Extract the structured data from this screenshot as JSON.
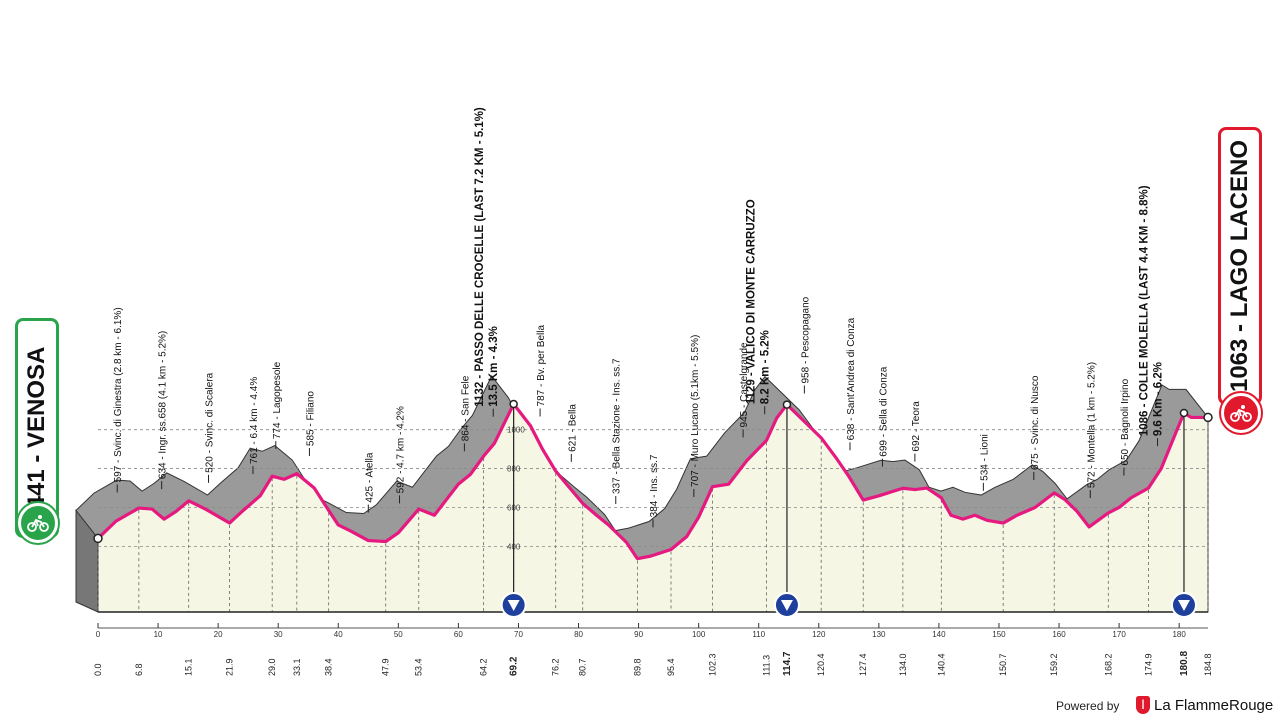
{
  "start": {
    "elevation_label": "441 - VENOSA",
    "icon": "cyclist-icon",
    "color": "#2aa44a"
  },
  "finish": {
    "elevation_label": "1063 - LAGO LACENO",
    "icon": "cyclist-icon",
    "color": "#e0192d"
  },
  "footer": {
    "powered_text": "Powered by",
    "brand_name": "La FlammeRouge",
    "brand_logo": "flame-logo"
  },
  "colors": {
    "road": "#e5197f",
    "terrain_fill": "#f5f6e4",
    "shoulder": "#9a9a9a",
    "feed_marker": "#1f3f9c"
  },
  "chart_data": {
    "type": "area",
    "title": "",
    "xlabel": "",
    "ylabel": "",
    "xlim": [
      0,
      184.8
    ],
    "ylim": [
      300,
      1160
    ],
    "grid": true,
    "x_axis_ticks": [
      0,
      10,
      20,
      30,
      40,
      50,
      60,
      70,
      80,
      90,
      100,
      110,
      120,
      130,
      140,
      150,
      160,
      170,
      180
    ],
    "y_axis_ticks": [
      400,
      600,
      800,
      1000
    ],
    "profile": {
      "x": [
        0,
        3,
        6.8,
        9,
        11,
        13,
        15.1,
        18,
        21.9,
        24,
        27,
        29,
        31,
        33.1,
        36,
        38.4,
        40,
        42,
        45,
        47.9,
        50,
        53.4,
        56,
        58,
        60,
        62,
        64.2,
        66,
        69.2,
        72,
        74,
        76.2,
        78,
        80.7,
        83,
        85,
        88,
        89.8,
        92,
        95.4,
        98,
        100,
        102.3,
        105,
        108,
        111.3,
        113,
        114.7,
        117,
        120.4,
        123,
        125,
        127.4,
        130,
        134,
        136,
        138,
        140.4,
        142,
        144,
        146,
        148,
        150.7,
        153,
        156,
        159.2,
        161,
        163,
        165,
        168.2,
        170,
        172,
        174.9,
        177,
        180.8,
        182,
        184.8
      ],
      "elevation": [
        441,
        530,
        597,
        592,
        540,
        580,
        634,
        590,
        520,
        580,
        660,
        761,
        745,
        774,
        700,
        585,
        510,
        480,
        430,
        425,
        470,
        592,
        560,
        640,
        720,
        770,
        864,
        930,
        1132,
        1020,
        900,
        787,
        720,
        621,
        560,
        510,
        420,
        337,
        350,
        384,
        450,
        550,
        707,
        720,
        840,
        945,
        1060,
        1129,
        1060,
        958,
        850,
        760,
        638,
        660,
        699,
        692,
        700,
        650,
        560,
        540,
        560,
        534,
        520,
        560,
        600,
        675,
        640,
        580,
        500,
        572,
        600,
        650,
        700,
        800,
        1086,
        1063,
        1063
      ]
    },
    "km_labels": [
      {
        "km": 0,
        "label": "0.0"
      },
      {
        "km": 6.8,
        "label": "6.8"
      },
      {
        "km": 15.1,
        "label": "15.1"
      },
      {
        "km": 21.9,
        "label": "21.9"
      },
      {
        "km": 29,
        "label": "29.0"
      },
      {
        "km": 33.1,
        "label": "33.1"
      },
      {
        "km": 38.4,
        "label": "38.4"
      },
      {
        "km": 47.9,
        "label": "47.9"
      },
      {
        "km": 53.4,
        "label": "53.4"
      },
      {
        "km": 64.2,
        "label": "64.2"
      },
      {
        "km": 69.2,
        "label": "69.2",
        "bold": true
      },
      {
        "km": 76.2,
        "label": "76.2"
      },
      {
        "km": 80.7,
        "label": "80.7"
      },
      {
        "km": 89.8,
        "label": "89.8"
      },
      {
        "km": 95.4,
        "label": "95.4"
      },
      {
        "km": 102.3,
        "label": "102.3"
      },
      {
        "km": 111.3,
        "label": "111.3"
      },
      {
        "km": 114.7,
        "label": "114.7",
        "bold": true
      },
      {
        "km": 120.4,
        "label": "120.4"
      },
      {
        "km": 127.4,
        "label": "127.4"
      },
      {
        "km": 134,
        "label": "134.0"
      },
      {
        "km": 140.4,
        "label": "140.4"
      },
      {
        "km": 150.7,
        "label": "150.7"
      },
      {
        "km": 159.2,
        "label": "159.2"
      },
      {
        "km": 168.2,
        "label": "168.2"
      },
      {
        "km": 174.9,
        "label": "174.9"
      },
      {
        "km": 180.8,
        "label": "180.8",
        "bold": true
      },
      {
        "km": 184.8,
        "label": "184.8"
      }
    ],
    "annotations": [
      {
        "km": 3.2,
        "lines": [
          "597 - Svinc. di Ginestra (2.8 km - 6.1%)"
        ]
      },
      {
        "km": 10.6,
        "lines": [
          "634 - Ingr. ss.658 (4.1 km - 5.2%)"
        ]
      },
      {
        "km": 18.4,
        "lines": [
          "520 - Svinc. di Scalera"
        ]
      },
      {
        "km": 25.8,
        "lines": [
          "761 - 6.4 km - 4.4%"
        ]
      },
      {
        "km": 29.6,
        "lines": [
          "774 - Lagopesole"
        ]
      },
      {
        "km": 35.2,
        "lines": [
          "585 - Filiano"
        ]
      },
      {
        "km": 45,
        "lines": [
          "425 - Atella"
        ]
      },
      {
        "km": 50.2,
        "lines": [
          "592 - 4.7 km - 4.2%"
        ]
      },
      {
        "km": 61,
        "lines": [
          "864 - San Fele"
        ]
      },
      {
        "km": 65.8,
        "bold": true,
        "lines": [
          "1132 - PASSO DELLE CROCELLE (LAST 7.2 KM - 5.1%)",
          "13.5 Km - 4.3%"
        ]
      },
      {
        "km": 73.6,
        "lines": [
          "787 - Bv. per Bella"
        ]
      },
      {
        "km": 78.8,
        "lines": [
          "621 - Bella"
        ]
      },
      {
        "km": 86.2,
        "lines": [
          "337 - Bella Stazione - Ins. ss.7"
        ]
      },
      {
        "km": 92.4,
        "lines": [
          "384 - Ins. ss.7"
        ]
      },
      {
        "km": 99.2,
        "lines": [
          "707 - Muro Lucano (5.1km - 5.5%)"
        ]
      },
      {
        "km": 107.4,
        "lines": [
          "945 - Castelgrande"
        ]
      },
      {
        "km": 111,
        "bold": true,
        "lines": [
          "1129 - VALICO DI MONTE CARRUZZO",
          "8.2 Km - 5.2%"
        ]
      },
      {
        "km": 117.6,
        "lines": [
          "958 - Pescopagano"
        ]
      },
      {
        "km": 125.2,
        "lines": [
          "638 - Sant'Andrea di Conza"
        ]
      },
      {
        "km": 130.6,
        "lines": [
          "699 - Sella di Conza"
        ]
      },
      {
        "km": 136,
        "lines": [
          "692 - Teora"
        ]
      },
      {
        "km": 147.4,
        "lines": [
          "534 - Lioni"
        ]
      },
      {
        "km": 155.8,
        "lines": [
          "675 - Svinc. di Nusco"
        ]
      },
      {
        "km": 165.2,
        "lines": [
          "572 - Montella (1 km - 5.2%)"
        ]
      },
      {
        "km": 170.8,
        "lines": [
          "650 - Bagnoli Irpino"
        ]
      },
      {
        "km": 176.4,
        "bold": true,
        "lines": [
          "1086 - COLLE MOLELLA (LAST 4.4 KM - 8.8%)",
          "9.6 Km - 6.2%"
        ]
      }
    ],
    "feed_zone_markers": [
      69.2,
      114.7,
      180.8
    ]
  }
}
